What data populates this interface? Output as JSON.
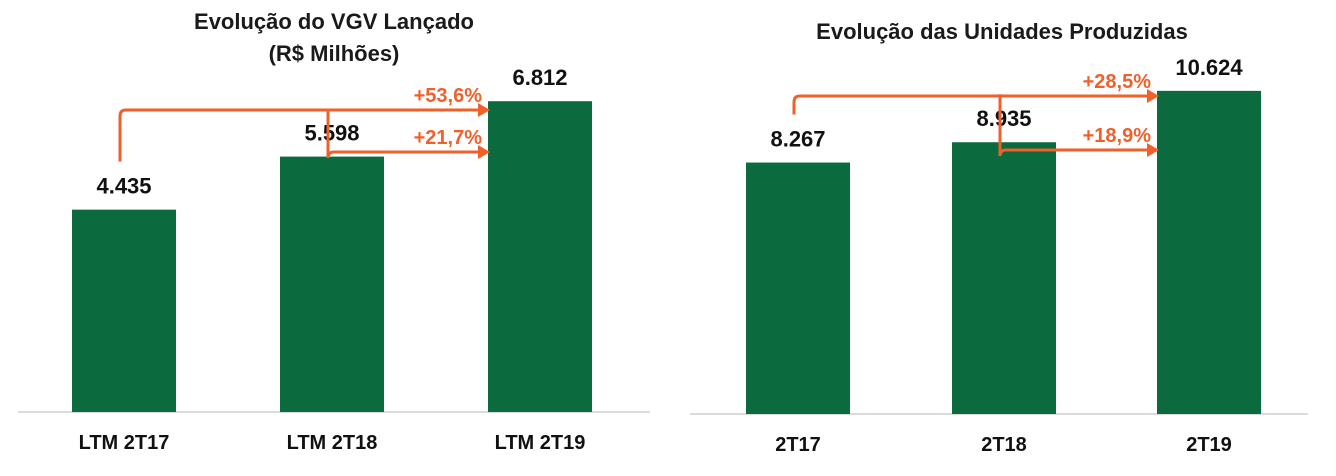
{
  "colors": {
    "bar": "#0b6b3f",
    "arrow": "#f0602a",
    "axis": "#cfcfcf"
  },
  "chart_data": [
    {
      "type": "bar",
      "title": "Evolução do VGV Lançado",
      "subtitle": "(R$ Milhões)",
      "categories": [
        "LTM 2T17",
        "LTM 2T18",
        "LTM 2T19"
      ],
      "values": [
        4435,
        5598,
        6812
      ],
      "value_labels": [
        "4.435",
        "5.598",
        "6.812"
      ],
      "ylim": [
        0,
        8000
      ],
      "grid": false,
      "annotations": [
        {
          "from": "LTM 2T17",
          "to": "LTM 2T19",
          "text": "+53,6%"
        },
        {
          "from": "LTM 2T18",
          "to": "LTM 2T19",
          "text": "+21,7%"
        }
      ]
    },
    {
      "type": "bar",
      "title": "Evolução das Unidades Produzidas",
      "categories": [
        "2T17",
        "2T18",
        "2T19"
      ],
      "values": [
        8267,
        8935,
        10624
      ],
      "value_labels": [
        "8.267",
        "8.935",
        "10.624"
      ],
      "ylim": [
        0,
        12000
      ],
      "grid": false,
      "annotations": [
        {
          "from": "2T17",
          "to": "2T19",
          "text": "+28,5%"
        },
        {
          "from": "2T18",
          "to": "2T19",
          "text": "+18,9%"
        }
      ]
    }
  ]
}
